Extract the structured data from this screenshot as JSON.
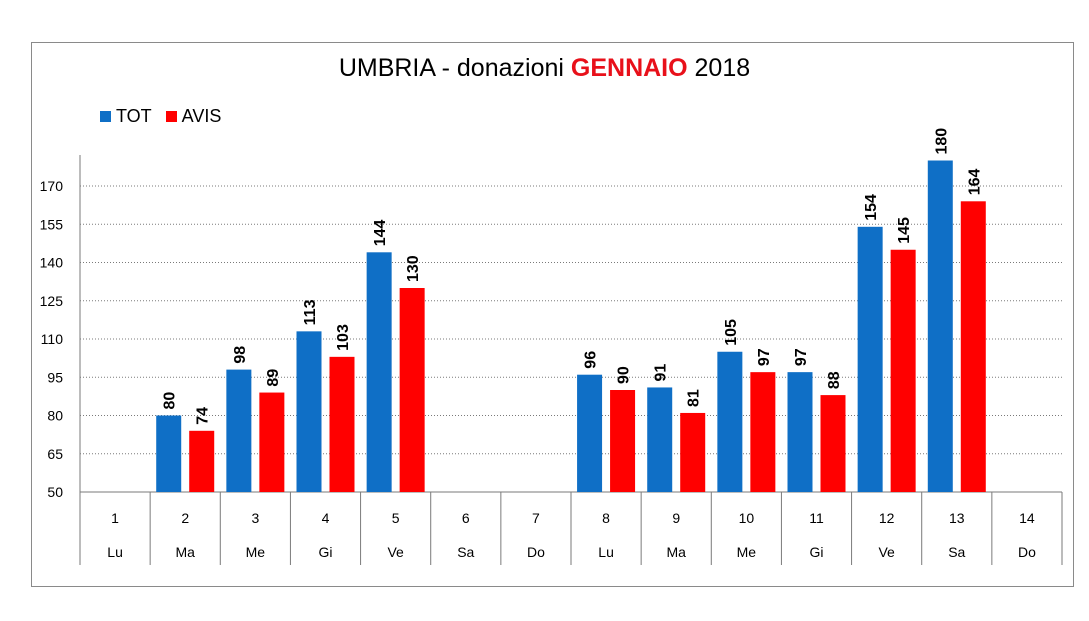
{
  "chart_data": {
    "type": "bar",
    "title": {
      "part1": "UMBRIA - donazioni",
      "part2": "GENNAIO",
      "part3": "2018"
    },
    "categories": [
      "1",
      "2",
      "3",
      "4",
      "5",
      "6",
      "7",
      "8",
      "9",
      "10",
      "11",
      "12",
      "13",
      "14"
    ],
    "weekdays": [
      "Lu",
      "Ma",
      "Me",
      "Gi",
      "Ve",
      "Sa",
      "Do",
      "Lu",
      "Ma",
      "Me",
      "Gi",
      "Ve",
      "Sa",
      "Do"
    ],
    "series": [
      {
        "name": "TOT",
        "color": "#0f6fc6",
        "values": [
          null,
          80,
          98,
          113,
          144,
          null,
          null,
          96,
          91,
          105,
          97,
          154,
          180,
          null
        ]
      },
      {
        "name": "AVIS",
        "color": "#ff0000",
        "values": [
          null,
          74,
          89,
          103,
          130,
          null,
          null,
          90,
          81,
          97,
          88,
          145,
          164,
          null
        ]
      }
    ],
    "ylim": [
      50,
      180
    ],
    "yticks": [
      50,
      65,
      80,
      95,
      110,
      125,
      140,
      155,
      170
    ],
    "grid": true,
    "legend_position": "top-left",
    "accent_color": "#e8101a"
  }
}
